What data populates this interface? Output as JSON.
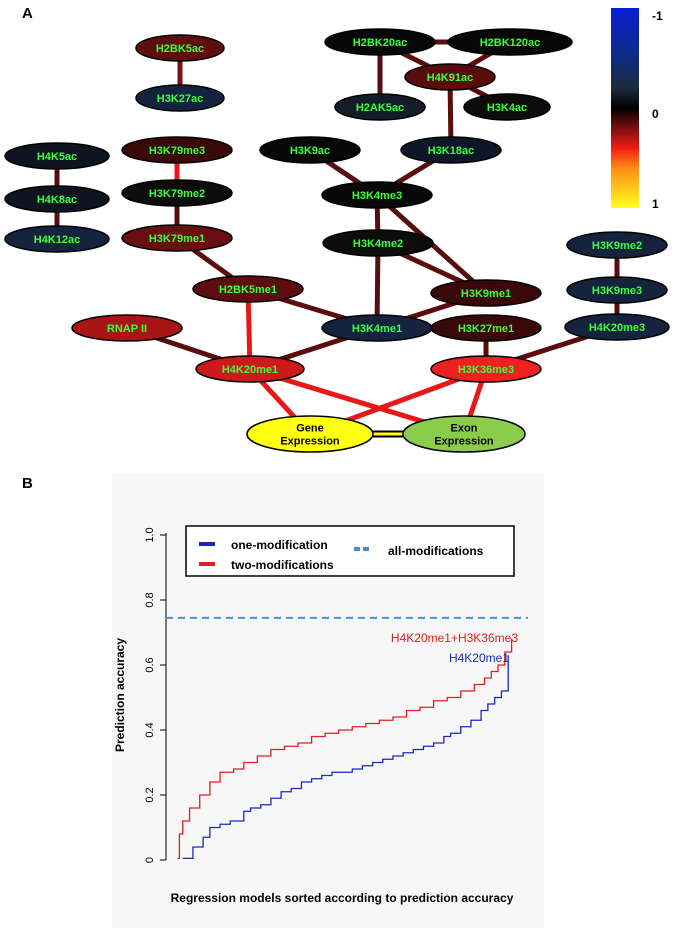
{
  "panel_a": {
    "letter": "A",
    "colorbar": {
      "labels": [
        "-1",
        "0",
        "1"
      ],
      "stops": [
        {
          "value": -1,
          "color": "#0a1fd6"
        },
        {
          "value": -0.55,
          "color": "#0d2a8a"
        },
        {
          "value": -0.2,
          "color": "#1c2c3c"
        },
        {
          "value": 0,
          "color": "#000000"
        },
        {
          "value": 0.2,
          "color": "#7a0e0e"
        },
        {
          "value": 0.4,
          "color": "#ee1c14"
        },
        {
          "value": 0.6,
          "color": "#ff8c12"
        },
        {
          "value": 1,
          "color": "#ffff20"
        }
      ]
    },
    "nodes": [
      {
        "id": "H2BK5ac",
        "label": "H2BK5ac",
        "fill": "#5e0e0e"
      },
      {
        "id": "H3K27ac",
        "label": "H3K27ac",
        "fill": "#15233e"
      },
      {
        "id": "H2BK20ac",
        "label": "H2BK20ac",
        "fill": "#080808"
      },
      {
        "id": "H2BK120ac",
        "label": "H2BK120ac",
        "fill": "#080808"
      },
      {
        "id": "H4K91ac",
        "label": "H4K91ac",
        "fill": "#5a0c0c"
      },
      {
        "id": "H2AK5ac",
        "label": "H2AK5ac",
        "fill": "#141c2c"
      },
      {
        "id": "H3K4ac",
        "label": "H3K4ac",
        "fill": "#0c0c0c"
      },
      {
        "id": "H4K5ac",
        "label": "H4K5ac",
        "fill": "#0e1420"
      },
      {
        "id": "H3K79me3",
        "label": "H3K79me3",
        "fill": "#3a0808"
      },
      {
        "id": "H3K9ac",
        "label": "H3K9ac",
        "fill": "#080808"
      },
      {
        "id": "H3K18ac",
        "label": "H3K18ac",
        "fill": "#0e1628"
      },
      {
        "id": "H4K8ac",
        "label": "H4K8ac",
        "fill": "#0e1420"
      },
      {
        "id": "H3K79me2",
        "label": "H3K79me2",
        "fill": "#0c0c0c"
      },
      {
        "id": "H3K4me3",
        "label": "H3K4me3",
        "fill": "#080808"
      },
      {
        "id": "H4K12ac",
        "label": "H4K12ac",
        "fill": "#15233e"
      },
      {
        "id": "H3K79me1",
        "label": "H3K79me1",
        "fill": "#6a0f0f"
      },
      {
        "id": "H3K4me2",
        "label": "H3K4me2",
        "fill": "#0c0c0c"
      },
      {
        "id": "H3K9me2",
        "label": "H3K9me2",
        "fill": "#15233e"
      },
      {
        "id": "H2BK5me1",
        "label": "H2BK5me1",
        "fill": "#5e0e0e"
      },
      {
        "id": "H3K9me1",
        "label": "H3K9me1",
        "fill": "#3a0808"
      },
      {
        "id": "H3K9me3",
        "label": "H3K9me3",
        "fill": "#15233e"
      },
      {
        "id": "RNAPII",
        "label": "RNAP II",
        "fill": "#a81515"
      },
      {
        "id": "H3K4me1",
        "label": "H3K4me1",
        "fill": "#15233e"
      },
      {
        "id": "H3K27me1",
        "label": "H3K27me1",
        "fill": "#3a0808"
      },
      {
        "id": "H4K20me3",
        "label": "H4K20me3",
        "fill": "#15233e"
      },
      {
        "id": "H4K20me1",
        "label": "H4K20me1",
        "fill": "#cc1a1a"
      },
      {
        "id": "H3K36me3",
        "label": "H3K36me3",
        "fill": "#ee2020"
      },
      {
        "id": "GeneExpr",
        "label": "Gene\nExpression",
        "fill": "#ffff10",
        "text_color": "#000000"
      },
      {
        "id": "ExonExpr",
        "label": "Exon\nExpression",
        "fill": "#8ccc4c",
        "text_color": "#000000"
      }
    ],
    "edges": [
      {
        "from": "H2BK5ac",
        "to": "H3K27ac",
        "color": "#7a1212"
      },
      {
        "from": "H2BK20ac",
        "to": "H2BK120ac",
        "color": "#5a0d0d"
      },
      {
        "from": "H2BK20ac",
        "to": "H4K91ac",
        "color": "#5a0d0d"
      },
      {
        "from": "H2BK120ac",
        "to": "H4K91ac",
        "color": "#5a0d0d"
      },
      {
        "from": "H2BK20ac",
        "to": "H2AK5ac",
        "color": "#5a0d0d"
      },
      {
        "from": "H4K91ac",
        "to": "H3K4ac",
        "color": "#5a0d0d"
      },
      {
        "from": "H4K91ac",
        "to": "H3K18ac",
        "color": "#5a0d0d"
      },
      {
        "from": "H4K5ac",
        "to": "H4K8ac",
        "color": "#5a0d0d"
      },
      {
        "from": "H4K8ac",
        "to": "H4K12ac",
        "color": "#5a0d0d"
      },
      {
        "from": "H3K79me3",
        "to": "H3K79me2",
        "color": "#e81818"
      },
      {
        "from": "H3K79me2",
        "to": "H3K79me1",
        "color": "#5a0d0d"
      },
      {
        "from": "H3K79me1",
        "to": "H2BK5me1",
        "color": "#5a0d0d"
      },
      {
        "from": "H3K9ac",
        "to": "H3K4me3",
        "color": "#5a0d0d"
      },
      {
        "from": "H3K18ac",
        "to": "H3K4me3",
        "color": "#5a0d0d"
      },
      {
        "from": "H3K4me3",
        "to": "H3K4me2",
        "color": "#5a0d0d"
      },
      {
        "from": "H3K4me3",
        "to": "H3K9me1",
        "color": "#5a0d0d"
      },
      {
        "from": "H3K4me2",
        "to": "H3K9me1",
        "color": "#5a0d0d"
      },
      {
        "from": "H3K4me2",
        "to": "H3K4me1",
        "color": "#5a0d0d"
      },
      {
        "from": "H3K9me2",
        "to": "H3K9me3",
        "color": "#5a0d0d"
      },
      {
        "from": "H3K9me3",
        "to": "H4K20me3",
        "color": "#5a0d0d"
      },
      {
        "from": "H2BK5me1",
        "to": "H3K4me1",
        "color": "#5a0d0d"
      },
      {
        "from": "H2BK5me1",
        "to": "H4K20me1",
        "color": "#e81818"
      },
      {
        "from": "H3K9me1",
        "to": "H3K4me1",
        "color": "#5a0d0d"
      },
      {
        "from": "RNAPII",
        "to": "H4K20me1",
        "color": "#5a0d0d"
      },
      {
        "from": "H3K4me1",
        "to": "H4K20me1",
        "color": "#5a0d0d"
      },
      {
        "from": "H3K27me1",
        "to": "H3K36me3",
        "color": "#5a0d0d"
      },
      {
        "from": "H4K20me3",
        "to": "H3K36me3",
        "color": "#5a0d0d"
      },
      {
        "from": "H4K20me1",
        "to": "GeneExpr",
        "color": "#e81818"
      },
      {
        "from": "H4K20me1",
        "to": "ExonExpr",
        "color": "#e81818"
      },
      {
        "from": "H3K36me3",
        "to": "GeneExpr",
        "color": "#e81818"
      },
      {
        "from": "H3K36me3",
        "to": "ExonExpr",
        "color": "#e81818"
      }
    ],
    "link_between_expressions": {
      "from": "GeneExpr",
      "to": "ExonExpr",
      "color": "#ffff10"
    }
  },
  "chart_data": {
    "type": "line",
    "panel_letter": "B",
    "title": "",
    "xlabel": "Regression models sorted according to prediction accuracy",
    "ylabel": "Prediction accuracy",
    "ylim": [
      0,
      1.0
    ],
    "yticks": [
      "0",
      "0.2",
      "0.4",
      "0.6",
      "0.8",
      "1.0"
    ],
    "ytick_values": [
      0,
      0.2,
      0.4,
      0.6,
      0.8,
      1.0
    ],
    "xlim": [
      0,
      100
    ],
    "legend": {
      "placement": "top",
      "entries": [
        {
          "label": "one-modification",
          "color": "#1a2ab8",
          "style": "solid"
        },
        {
          "label": "two-modifications",
          "color": "#e02020",
          "style": "solid"
        },
        {
          "label": "all-modifications",
          "color": "#4a8ed0",
          "style": "dashed"
        }
      ]
    },
    "series": [
      {
        "name": "one-modification",
        "color": "#1a2ab8",
        "x": [
          2,
          5,
          8,
          10,
          13,
          16,
          20,
          22,
          25,
          28,
          31,
          34,
          37,
          40,
          43,
          46,
          49,
          52,
          55,
          58,
          61,
          64,
          67,
          70,
          73,
          76,
          79,
          81,
          84,
          87,
          90,
          92,
          94,
          96,
          98
        ],
        "values": [
          0.005,
          0.04,
          0.07,
          0.1,
          0.11,
          0.12,
          0.15,
          0.16,
          0.17,
          0.19,
          0.21,
          0.22,
          0.24,
          0.25,
          0.26,
          0.27,
          0.27,
          0.28,
          0.29,
          0.3,
          0.31,
          0.32,
          0.33,
          0.34,
          0.35,
          0.36,
          0.38,
          0.39,
          0.41,
          0.43,
          0.46,
          0.48,
          0.5,
          0.52,
          0.63
        ]
      },
      {
        "name": "two-modifications",
        "color": "#e02020",
        "x": [
          0.5,
          1,
          2,
          4,
          7,
          10,
          13,
          17,
          20,
          24,
          28,
          32,
          36,
          40,
          44,
          48,
          52,
          56,
          60,
          64,
          68,
          72,
          76,
          80,
          84,
          88,
          91,
          93,
          95,
          97,
          99
        ],
        "values": [
          0.005,
          0.08,
          0.12,
          0.16,
          0.2,
          0.24,
          0.27,
          0.28,
          0.3,
          0.32,
          0.34,
          0.35,
          0.36,
          0.38,
          0.39,
          0.4,
          0.41,
          0.42,
          0.43,
          0.44,
          0.46,
          0.47,
          0.49,
          0.5,
          0.52,
          0.54,
          0.56,
          0.58,
          0.6,
          0.64,
          0.68
        ]
      },
      {
        "name": "all-modifications",
        "color": "#4a8ed0",
        "style": "dashed",
        "y_constant": 0.745
      }
    ],
    "annotations": [
      {
        "text": "H4K20me1+H3K36me3",
        "color": "#e02020",
        "series": "two-modifications"
      },
      {
        "text": "H4K20me1",
        "color": "#1a2ab8",
        "series": "one-modification"
      }
    ]
  }
}
